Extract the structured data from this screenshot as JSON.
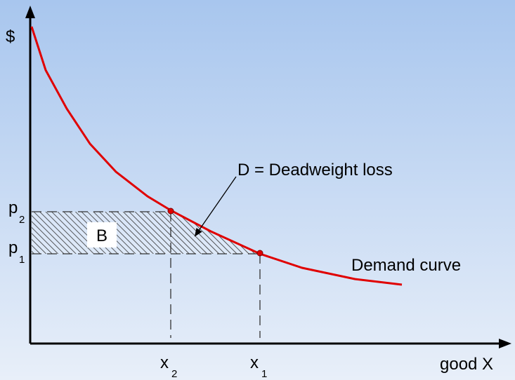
{
  "axes": {
    "y_label": "$",
    "x_label": "good X"
  },
  "prices": [
    {
      "symbol": "p",
      "subscript": "2"
    },
    {
      "symbol": "p",
      "subscript": "1"
    }
  ],
  "quantities": [
    {
      "symbol": "x",
      "subscript": "2"
    },
    {
      "symbol": "x",
      "subscript": "1"
    }
  ],
  "regions": {
    "b": "B",
    "d": "D = Deadweight loss"
  },
  "curve_label": "Demand curve"
}
